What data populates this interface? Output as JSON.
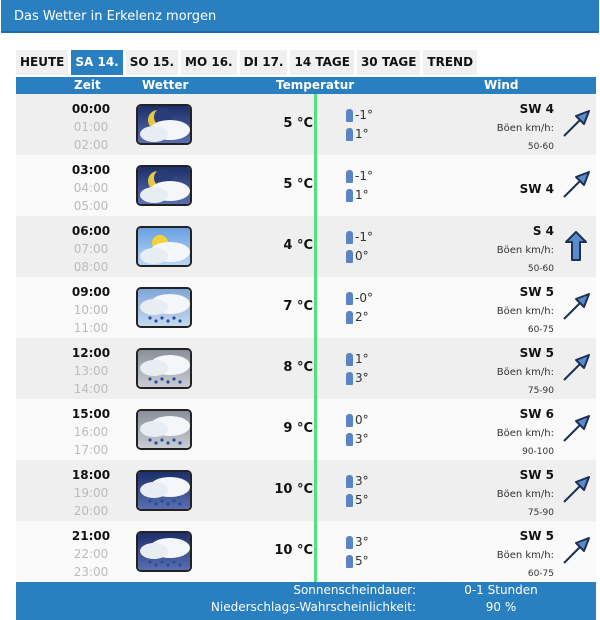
{
  "title": "Das Wetter in Erkelenz morgen",
  "tabs": [
    {
      "label": "HEUTE"
    },
    {
      "label": "SA 14.",
      "active": true
    },
    {
      "label": "SO 15."
    },
    {
      "label": "MO 16."
    },
    {
      "label": "DI 17."
    },
    {
      "label": "14 TAGE"
    },
    {
      "label": "30 TAGE"
    },
    {
      "label": "TREND"
    }
  ],
  "headers": {
    "zeit": "Zeit",
    "wetter": "Wetter",
    "temperatur": "Temperatur",
    "wind": "Wind"
  },
  "gust_label": "Böen km/h:",
  "rows": [
    {
      "times": [
        "00:00",
        "01:00",
        "02:00"
      ],
      "icon": "night-cloudy",
      "temp": "5 °C",
      "feel_f": "-1°",
      "feel_m": "1°",
      "wind": "SW 4",
      "gust": "50-60",
      "arrow": "northeast"
    },
    {
      "times": [
        "03:00",
        "04:00",
        "05:00"
      ],
      "icon": "night-cloudy",
      "temp": "5 °C",
      "feel_f": "-1°",
      "feel_m": "1°",
      "wind": "SW 4",
      "gust": "",
      "arrow": "northeast"
    },
    {
      "times": [
        "06:00",
        "07:00",
        "08:00"
      ],
      "icon": "sun-cloudy",
      "temp": "4 °C",
      "feel_f": "-1°",
      "feel_m": "0°",
      "wind": "S 4",
      "gust": "50-60",
      "arrow": "north"
    },
    {
      "times": [
        "09:00",
        "10:00",
        "11:00"
      ],
      "icon": "cloud-light-rain",
      "temp": "7 °C",
      "feel_f": "-0°",
      "feel_m": "2°",
      "wind": "SW 5",
      "gust": "60-75",
      "arrow": "northeast"
    },
    {
      "times": [
        "12:00",
        "13:00",
        "14:00"
      ],
      "icon": "cloud-rain",
      "temp": "8 °C",
      "feel_f": "1°",
      "feel_m": "3°",
      "wind": "SW 5",
      "gust": "75-90",
      "arrow": "northeast"
    },
    {
      "times": [
        "15:00",
        "16:00",
        "17:00"
      ],
      "icon": "cloud-rain",
      "temp": "9 °C",
      "feel_f": "0°",
      "feel_m": "3°",
      "wind": "SW 6",
      "gust": "90-100",
      "arrow": "northeast"
    },
    {
      "times": [
        "18:00",
        "19:00",
        "20:00"
      ],
      "icon": "night-cloud-rain",
      "temp": "10 °C",
      "feel_f": "3°",
      "feel_m": "5°",
      "wind": "SW 5",
      "gust": "75-90",
      "arrow": "northeast"
    },
    {
      "times": [
        "21:00",
        "22:00",
        "23:00"
      ],
      "icon": "night-cloud-rain",
      "temp": "10 °C",
      "feel_f": "3°",
      "feel_m": "5°",
      "wind": "SW 5",
      "gust": "60-75",
      "arrow": "northeast"
    }
  ],
  "footer": {
    "sun_label": "Sonnenscheindauer:",
    "sun_value": "0-1 Stunden",
    "rain_label": "Niederschlags-Wahrscheinlichkeit:",
    "rain_value": "90 %"
  },
  "colors": {
    "accent": "#2a7fc1",
    "line": "#4ee57f"
  }
}
